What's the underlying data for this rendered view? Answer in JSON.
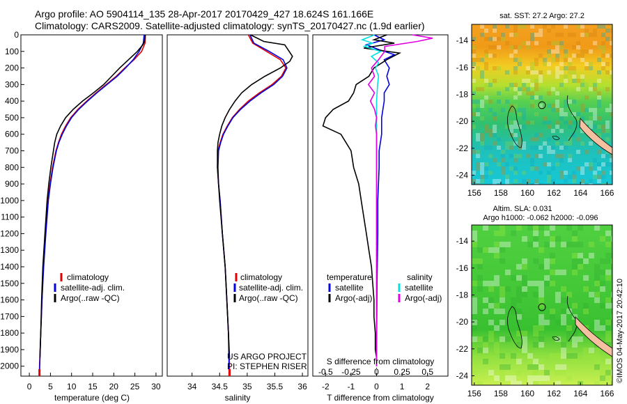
{
  "header": {
    "line1": "Argo profile: AO 5904114_135 28-Apr-2017 20170429_427 18.624S 161.166E",
    "line2": "Climatology: CARS2009. Satellite-adjusted climatology: synTS_20170427.nc (1.9d earlier)"
  },
  "colors": {
    "climatology": "#e00000",
    "satellite": "#0000e0",
    "argo": "#000000",
    "sat_salinity": "#00e0e0",
    "argo_salinity_adj": "#e000e0"
  },
  "depth_axis": {
    "min": 0,
    "max": 2060,
    "ticks": [
      0,
      100,
      200,
      300,
      400,
      500,
      600,
      700,
      800,
      900,
      1000,
      1100,
      1200,
      1300,
      1400,
      1500,
      1600,
      1700,
      1800,
      1900,
      2000
    ]
  },
  "legend_profiles": [
    "climatology",
    "satellite-adj. clim.",
    "Argo(..raw -QC)"
  ],
  "legend_diff": {
    "temperature_head": "temperature",
    "salinity_head": "salinity",
    "satellite": "satellite",
    "argo_adj": "Argo(-adj)"
  },
  "project_note": {
    "line1": "US ARGO PROJECT",
    "line2": "PI: STEPHEN RISER"
  },
  "map_sst": {
    "title": "sat. SST: 27.2 Argo: 27.2"
  },
  "map_sla": {
    "title1": "Altim. SLA: 0.031",
    "title2": "Argo h1000: -0.062 h2000: -0.096"
  },
  "credit": "©IMOS 04-May-2017 20:42:10",
  "chart_data": [
    {
      "type": "line",
      "xlabel": "temperature (deg C)",
      "xlim": [
        -2,
        31.5
      ],
      "xticks": [
        0,
        5,
        10,
        15,
        20,
        25,
        30
      ],
      "ylim": [
        2060,
        0
      ],
      "series": [
        {
          "name": "climatology",
          "depth": [
            0,
            50,
            100,
            150,
            200,
            250,
            300,
            350,
            400,
            450,
            500,
            550,
            600,
            650,
            700,
            800,
            900,
            1000,
            1200,
            1400,
            1600,
            1800,
            2000,
            2060
          ],
          "values": [
            27.5,
            27.4,
            26.6,
            24.8,
            22.6,
            20.6,
            18.2,
            15.8,
            13.6,
            11.5,
            9.8,
            8.6,
            7.6,
            6.9,
            6.3,
            5.5,
            4.9,
            4.4,
            3.8,
            3.3,
            3.0,
            2.7,
            2.4,
            2.35
          ]
        },
        {
          "name": "satellite-adj. clim.",
          "depth": [
            0,
            50,
            100,
            150,
            200,
            250,
            300,
            350,
            400,
            450,
            500,
            550,
            600,
            650,
            700,
            800,
            900,
            1000,
            1200,
            1400,
            1600,
            1800,
            2000,
            2060
          ],
          "values": [
            27.2,
            27.0,
            26.0,
            24.6,
            22.8,
            20.8,
            18.4,
            16.0,
            13.8,
            11.7,
            10.0,
            8.8,
            7.8,
            7.0,
            6.4,
            5.6,
            5.0,
            4.5,
            3.9,
            3.4,
            3.0,
            2.7,
            2.45,
            2.4
          ]
        },
        {
          "name": "Argo(..raw -QC)",
          "depth": [
            0,
            40,
            60,
            100,
            150,
            200,
            250,
            300,
            350,
            400,
            450,
            500,
            550,
            600,
            650,
            700,
            800,
            900,
            1000,
            1200,
            1400,
            1600,
            1800,
            1950
          ],
          "values": [
            27.4,
            27.3,
            26.9,
            25.6,
            23.5,
            21.4,
            19.5,
            17.6,
            15.2,
            12.6,
            10.4,
            8.6,
            7.4,
            6.5,
            6.0,
            5.7,
            5.1,
            4.6,
            4.2,
            3.7,
            3.2,
            2.9,
            2.7,
            2.5
          ]
        }
      ]
    },
    {
      "type": "line",
      "xlabel": "salinity",
      "xlim": [
        33.55,
        36.1
      ],
      "xticks": [
        34,
        34.5,
        35,
        35.5,
        36
      ],
      "ylim": [
        2060,
        0
      ],
      "series": [
        {
          "name": "climatology",
          "depth": [
            0,
            50,
            100,
            150,
            200,
            250,
            300,
            350,
            400,
            450,
            500,
            550,
            600,
            650,
            700,
            800,
            900,
            1000,
            1200,
            1400,
            1600,
            1800,
            2000,
            2060
          ],
          "values": [
            35.02,
            35.1,
            35.35,
            35.6,
            35.7,
            35.62,
            35.45,
            35.22,
            35.02,
            34.86,
            34.73,
            34.64,
            34.56,
            34.51,
            34.47,
            34.46,
            34.48,
            34.51,
            34.55,
            34.6,
            34.63,
            34.66,
            34.68,
            34.68
          ]
        },
        {
          "name": "satellite-adj. clim.",
          "depth": [
            0,
            50,
            100,
            150,
            200,
            250,
            300,
            350,
            400,
            450,
            500,
            550,
            600,
            650,
            700,
            800,
            900,
            1000,
            1200,
            1400,
            1600,
            1800,
            2000,
            2060
          ],
          "values": [
            35.05,
            35.12,
            35.4,
            35.65,
            35.72,
            35.64,
            35.48,
            35.25,
            35.05,
            34.88,
            34.74,
            34.65,
            34.57,
            34.52,
            34.48,
            34.47,
            34.48,
            34.51,
            34.55,
            34.6,
            34.63,
            34.66,
            34.67,
            34.67
          ]
        },
        {
          "name": "Argo(..raw -QC)",
          "depth": [
            0,
            40,
            60,
            100,
            130,
            160,
            200,
            250,
            300,
            350,
            400,
            450,
            500,
            550,
            600,
            650,
            700,
            800,
            900,
            1000,
            1200,
            1400,
            1600,
            1800,
            1950
          ],
          "values": [
            35.06,
            35.3,
            35.68,
            35.76,
            35.82,
            35.77,
            35.6,
            35.32,
            35.08,
            34.9,
            34.78,
            34.68,
            34.6,
            34.54,
            34.5,
            34.47,
            34.46,
            34.46,
            34.48,
            34.5,
            34.55,
            34.6,
            34.63,
            34.66,
            34.68
          ]
        }
      ]
    },
    {
      "type": "line",
      "xlabel_bottom": "T difference from climatology",
      "xlabel_top": "S difference from climatology",
      "xlim": [
        -2.5,
        2.8
      ],
      "xticks_bottom": [
        -2,
        -1,
        0,
        1,
        2
      ],
      "xticks_top": [
        -0.5,
        -0.25,
        0,
        0.25,
        0.5
      ],
      "ylim": [
        2060,
        0
      ],
      "series": [
        {
          "name": "temperature satellite",
          "depth": [
            0,
            30,
            60,
            90,
            120,
            150,
            200,
            250,
            300,
            350,
            400,
            500,
            600,
            700,
            800,
            1000,
            1200,
            1500,
            2000
          ],
          "values": [
            -0.1,
            0.3,
            -0.4,
            0.1,
            0.7,
            0.3,
            0.5,
            0.4,
            0.5,
            0.3,
            0.3,
            0.2,
            0.2,
            0.1,
            0.1,
            0.05,
            0.05,
            0.02,
            0.0
          ]
        },
        {
          "name": "temperature Argo(-adj)",
          "depth": [
            0,
            30,
            50,
            80,
            110,
            150,
            200,
            250,
            300,
            350,
            400,
            450,
            500,
            550,
            600,
            650,
            700,
            800,
            900,
            1000,
            1100,
            1200,
            1300,
            1400,
            1500,
            1600,
            1700,
            1800,
            1900,
            1950
          ],
          "values": [
            0.4,
            -0.1,
            0.7,
            -0.5,
            0.9,
            0.4,
            -0.1,
            -0.3,
            -0.8,
            -0.9,
            -1.1,
            -1.7,
            -2.0,
            -2.1,
            -1.4,
            -1.2,
            -1.0,
            -0.9,
            -0.7,
            -0.6,
            -0.5,
            -0.4,
            -0.3,
            -0.2,
            -0.15,
            -0.1,
            -0.1,
            -0.05,
            -0.05,
            0.0
          ]
        },
        {
          "name": "salinity satellite",
          "depth": [
            0,
            30,
            50,
            70,
            100,
            130,
            170,
            200,
            250,
            300,
            400,
            500,
            600,
            700,
            800,
            1000,
            1500,
            2000
          ],
          "values": [
            -0.02,
            -0.14,
            -0.04,
            -0.12,
            0.04,
            -0.05,
            0.02,
            -0.01,
            0.02,
            0.01,
            0.0,
            0.0,
            0.0,
            0.0,
            0.0,
            0.0,
            0.0,
            0.0
          ]
        },
        {
          "name": "salinity Argo(-adj)",
          "depth": [
            0,
            20,
            40,
            70,
            100,
            150,
            200,
            250,
            300,
            350,
            400,
            450,
            500,
            550,
            600,
            650,
            700,
            800,
            900,
            1000,
            1200,
            1500,
            2000
          ],
          "values": [
            0.35,
            0.55,
            0.4,
            0.08,
            0.08,
            0.02,
            -0.05,
            -0.02,
            -0.08,
            -0.02,
            -0.06,
            -0.02,
            0.0,
            -0.01,
            0.0,
            0.0,
            0.0,
            0.0,
            0.0,
            0.0,
            0.0,
            0.0,
            0.0
          ]
        }
      ]
    },
    {
      "type": "heatmap",
      "title": "sat. SST: 27.2 Argo: 27.2",
      "xlim": [
        155.8,
        166.4
      ],
      "ylim": [
        -24.7,
        -12.8
      ],
      "xticks": [
        156,
        158,
        160,
        162,
        164,
        166
      ],
      "yticks": [
        -14,
        -16,
        -18,
        -20,
        -22,
        -24
      ]
    },
    {
      "type": "heatmap",
      "title": "Altim. SLA: 0.031",
      "subtitle": "Argo h1000: -0.062 h2000: -0.096",
      "xlim": [
        155.8,
        166.4
      ],
      "ylim": [
        -24.7,
        -12.8
      ],
      "xticks": [
        156,
        158,
        160,
        162,
        164,
        166
      ],
      "yticks": [
        -14,
        -16,
        -18,
        -20,
        -22,
        -24
      ]
    }
  ]
}
